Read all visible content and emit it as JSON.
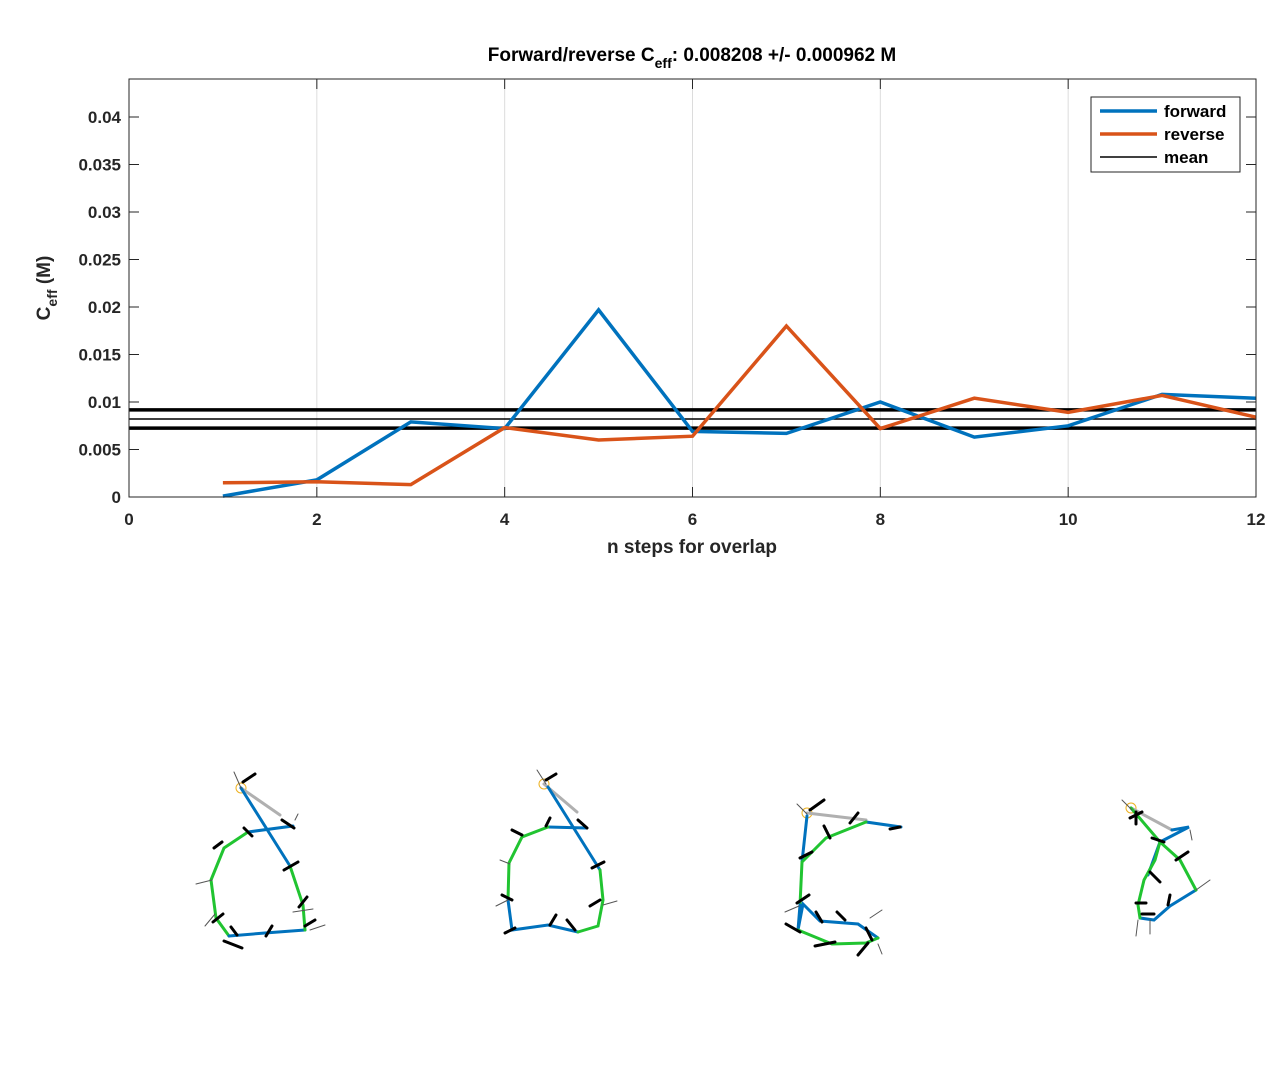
{
  "chart_data": {
    "type": "line",
    "title": {
      "main": "Forward/reverse C",
      "sub": "eff",
      "rest": ": 0.008208 +/- 0.000962 M"
    },
    "xlabel": "n steps for overlap",
    "ylabel": {
      "main": "C",
      "sub": "eff",
      "rest": " (M)"
    },
    "xlim": [
      0,
      12
    ],
    "ylim": [
      0,
      0.044
    ],
    "xticks": [
      "0",
      "2",
      "4",
      "6",
      "8",
      "10",
      "12"
    ],
    "yticks": [
      "0",
      "0.005",
      "0.01",
      "0.015",
      "0.02",
      "0.025",
      "0.03",
      "0.035",
      "0.04"
    ],
    "x_grid": true,
    "y_grid": false,
    "legend_position": "top-right",
    "x": [
      1,
      2,
      3,
      4,
      5,
      6,
      7,
      8,
      9,
      10,
      11,
      12
    ],
    "series": [
      {
        "name": "forward",
        "color": "#0072BD",
        "values": [
          0.0001,
          0.0018,
          0.0079,
          0.0072,
          0.0197,
          0.0069,
          0.0067,
          0.01,
          0.0063,
          0.0075,
          0.0108,
          0.0104
        ]
      },
      {
        "name": "reverse",
        "color": "#D95319",
        "values": [
          0.0015,
          0.0016,
          0.0013,
          0.0073,
          0.006,
          0.0064,
          0.018,
          0.0072,
          0.0104,
          0.0089,
          0.0107,
          0.0084
        ]
      }
    ],
    "mean": {
      "name": "mean",
      "color": "#000000",
      "value": 0.008208,
      "std": 0.000962
    }
  }
}
